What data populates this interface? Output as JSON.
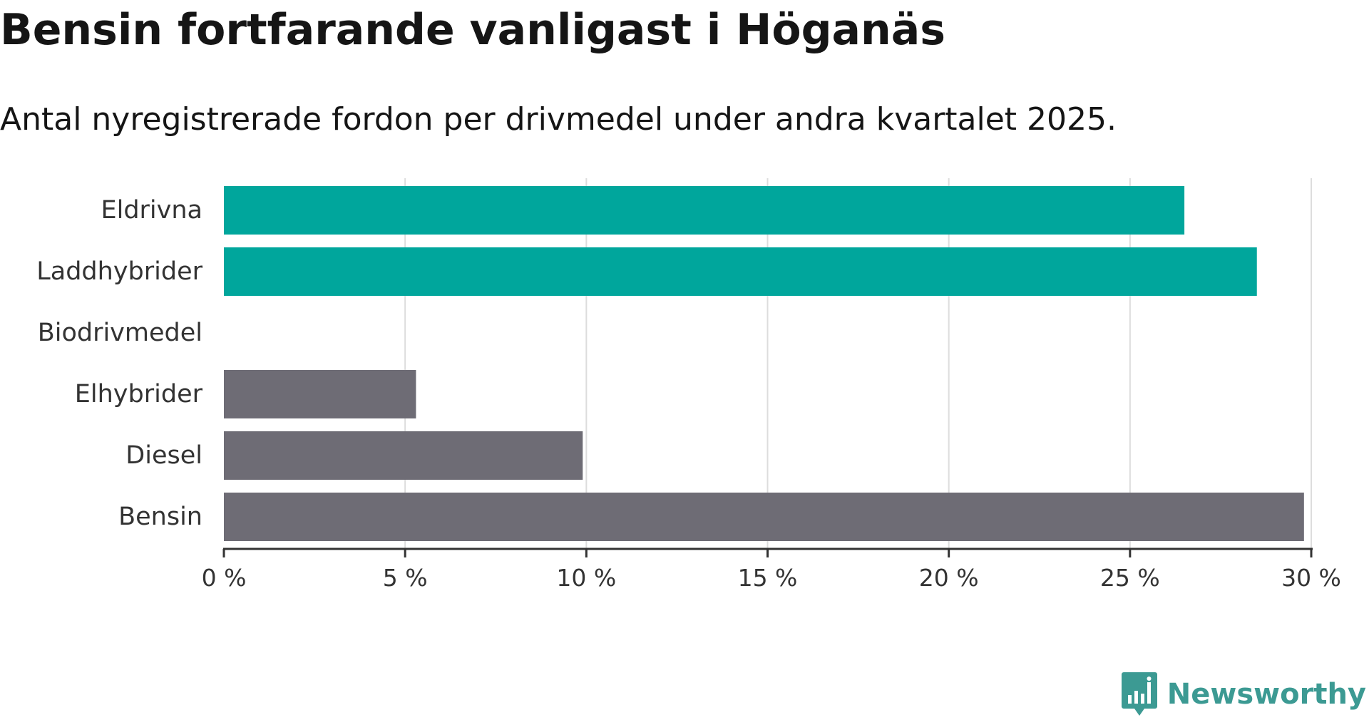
{
  "chart_data": {
    "type": "bar",
    "orientation": "horizontal",
    "title": "Bensin fortfarande vanligast i Höganäs",
    "subtitle": "Antal nyregistrerade fordon per drivmedel under andra kvartalet 2025.",
    "categories": [
      "Eldrivna",
      "Laddhybrider",
      "Biodrivmedel",
      "Elhybrider",
      "Diesel",
      "Bensin"
    ],
    "values": [
      26.5,
      28.5,
      0,
      5.3,
      9.9,
      29.8
    ],
    "bar_colors": [
      "#00a69c",
      "#00a69c",
      "#00a69c",
      "#6e6c75",
      "#6e6c75",
      "#6e6c75"
    ],
    "xlim": [
      0,
      30
    ],
    "xticks": [
      0,
      5,
      10,
      15,
      20,
      25,
      30
    ],
    "xtick_labels": [
      "0 %",
      "5 %",
      "10 %",
      "15 %",
      "20 %",
      "25 %",
      "30 %"
    ],
    "xlabel": "",
    "ylabel": "",
    "grid": true,
    "gridline_color": "#dddddd",
    "axis_color": "#333333"
  },
  "branding": {
    "name": "Newsworthy",
    "icon": "newsworthy-logo-icon",
    "color": "#3c9a93"
  }
}
